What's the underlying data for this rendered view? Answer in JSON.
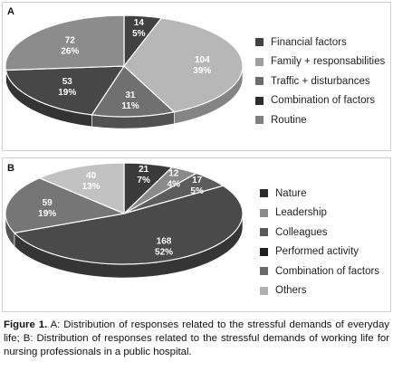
{
  "chart_data": [
    {
      "type": "pie",
      "panel": "A",
      "categories": [
        "Financial factors",
        "Family + responsabilities",
        "Traffic + disturbances",
        "Combination of factors",
        "Routine"
      ],
      "values": [
        14,
        104,
        31,
        53,
        72
      ],
      "percents": [
        "5%",
        "39%",
        "11%",
        "19%",
        "26%"
      ],
      "plot_order": [
        0,
        1,
        2,
        3,
        4
      ],
      "colors": [
        "#414141",
        "#b7b7b7",
        "#707070",
        "#474747",
        "#8c8c8c"
      ],
      "legend_colors": [
        "#414141",
        "#9e9e9e",
        "#6c6c6c",
        "#2b2b2b",
        "#808080"
      ],
      "legend": "right"
    },
    {
      "type": "pie",
      "panel": "B",
      "categories": [
        "Nature",
        "Leadership",
        "Colleagues",
        "Performed activity",
        "Combination of factors",
        "Others"
      ],
      "values": [
        21,
        12,
        17,
        168,
        59,
        40
      ],
      "percents": [
        "7%",
        "4%",
        "5%",
        "52%",
        "19%",
        "13%"
      ],
      "colors": [
        "#3a3a3a",
        "#8a8a8a",
        "#5c5c5c",
        "#4a4a4a",
        "#767676",
        "#c2c2c2"
      ],
      "legend_colors": [
        "#2b2b2b",
        "#8a8a8a",
        "#5a5a5a",
        "#1f1f1f",
        "#6a6a6a",
        "#b0b0b0"
      ],
      "legend": "right"
    }
  ],
  "caption": {
    "label": "Figure 1.",
    "text": " A: Distribution of responses related to the stressful demands of everyday life; B: Distribution of responses related to the stressful demands of working life for nursing professionals in a public hospital."
  }
}
